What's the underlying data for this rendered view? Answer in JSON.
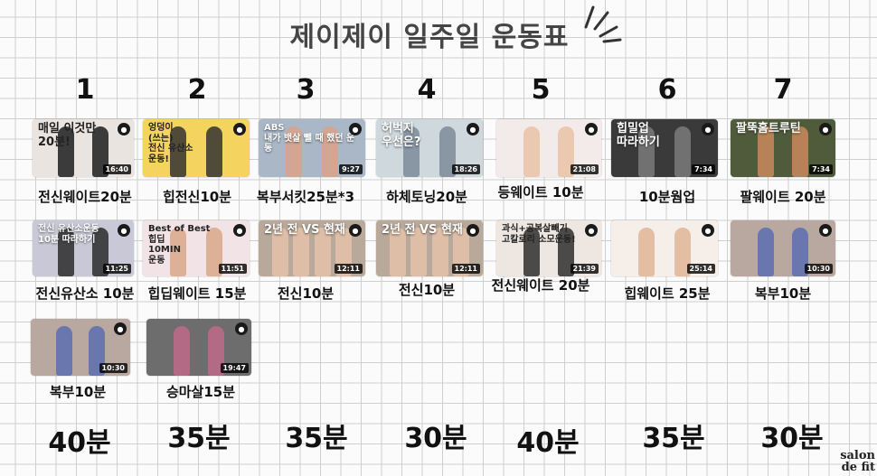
{
  "title": "제이제이 일주일 운동표",
  "days": [
    "1",
    "2",
    "3",
    "4",
    "5",
    "6",
    "7"
  ],
  "rows": [
    [
      {
        "caption": "전신웨이트20분",
        "thumb_text": "매일 이것만\n20분!",
        "duration": "16:40",
        "bg": "#e9e4e0",
        "fig": "#1d1d1d",
        "dark": true
      },
      {
        "caption": "힙전신10분",
        "thumb_text": "엉덩이\n(쓰는)\n전신 유산소\n운동!",
        "duration": "",
        "bg": "#f4d35e",
        "fig": "#333333",
        "dark": true
      },
      {
        "caption": "복부서킷25분*3",
        "thumb_text": "ABS\n내가 뱃살 뺄 때 했던 운동",
        "duration": "9:27",
        "bg": "#a9b7c6",
        "fig": "#d9a38a",
        "dark": false
      },
      {
        "caption": "하체토닝20분",
        "thumb_text": "허벅지\n우선은?",
        "duration": "18:26",
        "bg": "#cfd8dc",
        "fig": "#7c8b9a",
        "dark": false
      },
      {
        "caption": "등웨이트 10분",
        "thumb_text": "",
        "duration": "21:08",
        "bg": "#f3eaea",
        "fig": "#e8c3a6",
        "dark": true
      },
      {
        "caption": "10분웜업",
        "thumb_text": "힙밀업\n따라하기",
        "duration": "7:34",
        "bg": "#3a3a3a",
        "fig": "#7b7b7b",
        "dark": false
      },
      {
        "caption": "팔웨이트 20분",
        "thumb_text": "팔뚝홈트루틴",
        "duration": "7:34",
        "bg": "#4f5b3b",
        "fig": "#c98a5d",
        "dark": false
      }
    ],
    [
      {
        "caption": "전신유산소 10분",
        "thumb_text": "전신 유산소운동\n10분 따라하기",
        "duration": "11:25",
        "bg": "#c8c8d6",
        "fig": "#2b2b2b",
        "dark": false
      },
      {
        "caption": "힙딥웨이트 15분",
        "thumb_text": "Best of Best\n힙딥\n10MIN\n운동",
        "duration": "11:51",
        "bg": "#f1e3e6",
        "fig": "#d8a88a",
        "dark": true
      },
      {
        "caption": "전신10분",
        "thumb_text": "2년 전 VS 현재",
        "duration": "12:11",
        "bg": "#b9a99a",
        "fig": "#e4c2a8",
        "dark": false
      },
      {
        "caption": "전신10분",
        "thumb_text": "2년 전 VS 현재",
        "duration": "12:11",
        "bg": "#b9a99a",
        "fig": "#e4c2a8",
        "dark": false
      },
      {
        "caption": "전신웨이트 20분",
        "thumb_text": "과식+공복살빼기\n고칼로리 소모운동!",
        "duration": "21:39",
        "bg": "#eee6e0",
        "fig": "#2e2e2e",
        "dark": true
      },
      {
        "caption": "힙웨이트 25분",
        "thumb_text": "",
        "duration": "25:14",
        "bg": "#f6efe9",
        "fig": "#e0b595",
        "dark": true
      },
      {
        "caption": "복부10분",
        "thumb_text": "",
        "duration": "10:30",
        "bg": "#b8a8a0",
        "fig": "#5a6fb0",
        "dark": false
      }
    ],
    [
      {
        "caption": "복부10분",
        "thumb_text": "",
        "duration": "10:30",
        "bg": "#b8a8a0",
        "fig": "#5a6fb0",
        "dark": false
      },
      {
        "caption": "승마살15분",
        "thumb_text": "",
        "duration": "19:47",
        "bg": "#6d6d6d",
        "fig": "#c06a8a",
        "dark": false
      }
    ]
  ],
  "totals": [
    "40분",
    "35분",
    "35분",
    "30분",
    "40분",
    "35분",
    "30분"
  ],
  "logo": "salon\nde fit"
}
